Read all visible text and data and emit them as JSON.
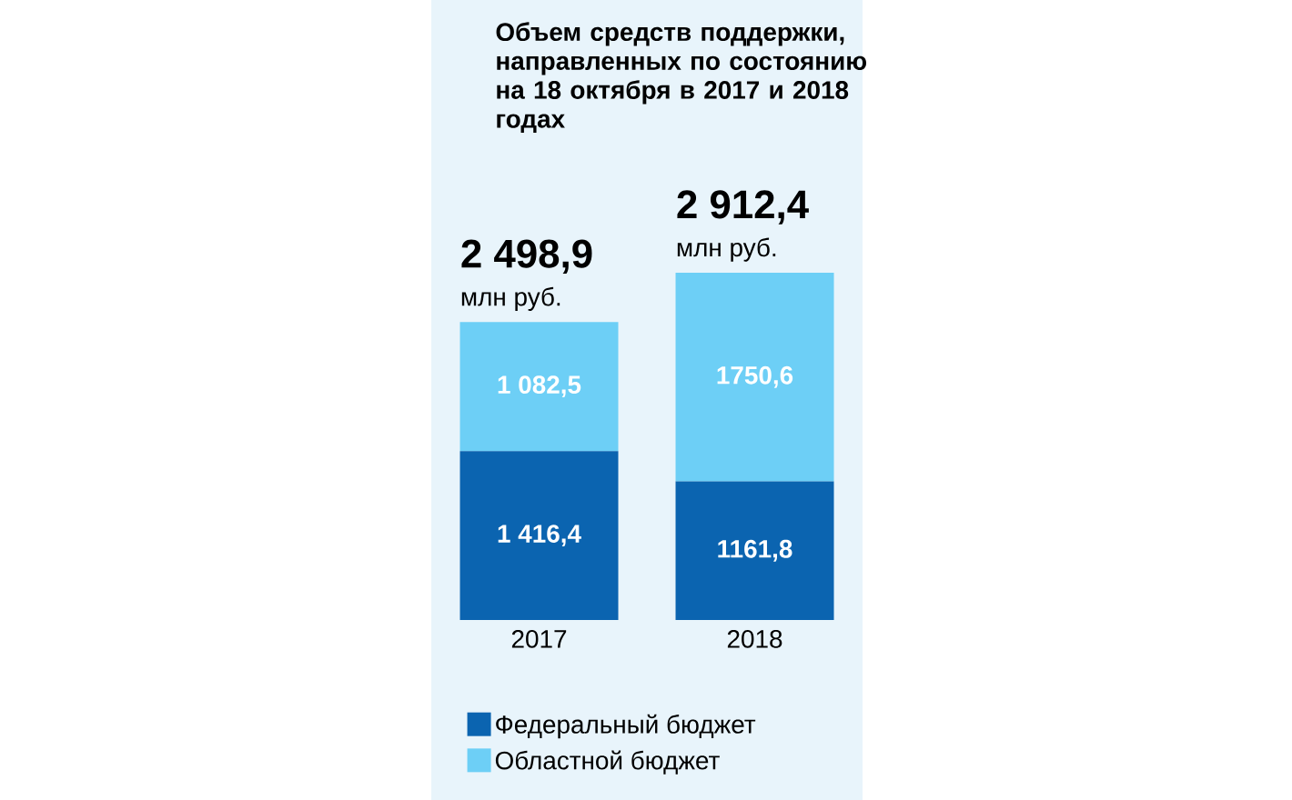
{
  "chart_data": {
    "type": "bar",
    "stacked": true,
    "title": "Объем средств поддержки, направленных по состоянию на 18 октября в 2017 и 2018 годах",
    "categories": [
      "2017",
      "2018"
    ],
    "series": [
      {
        "name": "Федеральный бюджет",
        "color": "#0b64b0",
        "values": [
          1416.4,
          1161.8
        ],
        "value_labels": [
          "1 416,4",
          "1161,8"
        ]
      },
      {
        "name": "Областной бюджет",
        "color": "#6dcff6",
        "values": [
          1082.5,
          1750.6
        ],
        "value_labels": [
          "1 082,5",
          "1750,6"
        ]
      }
    ],
    "totals": [
      "2 498,9",
      "2 912,4"
    ],
    "annotations": [
      {
        "text": "млн руб.",
        "x": "2017",
        "y": 2498.9
      },
      {
        "text": "млн руб.",
        "x": "2018",
        "y": 2912.4
      }
    ],
    "legend": "bottom"
  }
}
